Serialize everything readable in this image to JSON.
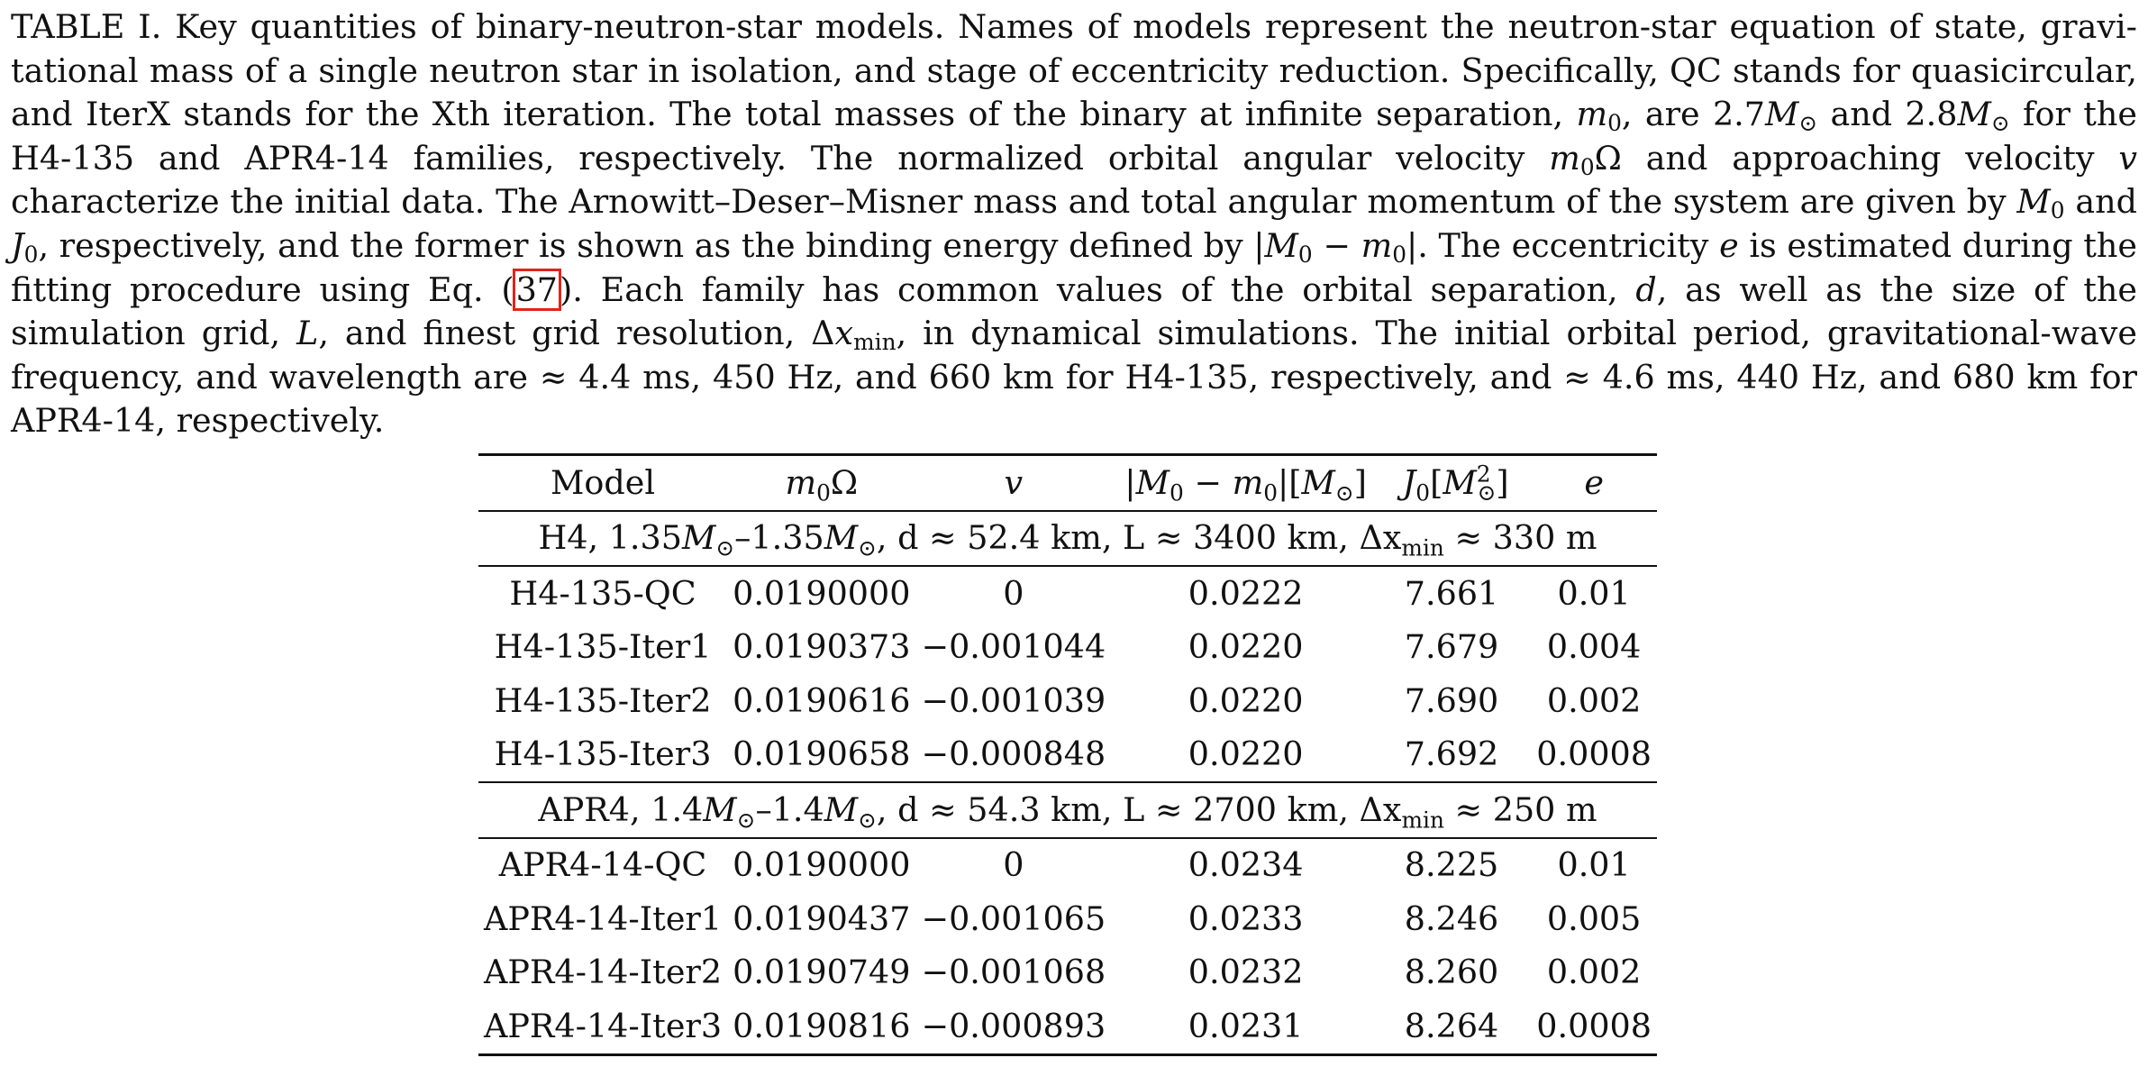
{
  "caption": {
    "label": "TABLE I.",
    "p1": " Key quantities of binary-neutron-star models. Names of models represent the neutron-star equation of state, gravi-tational mass of a single neutron star in isolation, and stage of eccentricity reduction. Specifically, QC stands for quasicircular, and IterX stands for the Xth iteration.  The total masses of the binary at infinite separation, ",
    "p2": ", are 2.7",
    "p3": " and 2.8",
    "p4": " for the H4-135 and APR4-14 families, respectively. The normalized orbital angular velocity ",
    "p5": " and approaching velocity ",
    "p6": " characterize the initial data.  The Arnowitt–Deser–Misner mass and total angular momentum of the system are given by ",
    "p7": " and ",
    "p8": ", respectively, and the former is shown as the binding energy defined by |",
    "p9": "|. The eccentricity ",
    "p10": " is estimated during the fitting procedure using Eq. (",
    "eq_ref": "37",
    "p11": ").  Each family has common values of the orbital separation, ",
    "p12": ", as well as the size of the simulation grid, ",
    "p13": ", and finest grid resolution, Δ",
    "p14": ", in dynamical simulations.  The initial orbital period, gravitational-wave frequency, and wavelength are ≈ 4.4 ms, 450 Hz, and 660 km for H4-135, respectively, and ≈ 4.6 ms, 440 Hz, and 680 km for APR4-14, respectively."
  },
  "table": {
    "headers": {
      "model": "Model",
      "v": "v",
      "e": "e"
    },
    "groups": [
      {
        "label_pre": "H4, 1.35",
        "label_mid": "–1.35",
        "label_d": ", d ≈ 52.4 km, L ≈ 3400 km, Δx",
        "label_post": " ≈ 330 m",
        "rows": [
          {
            "model": "H4-135-QC",
            "m0_omega": "0.0190000",
            "v": "0",
            "binding": "0.0222",
            "J0": "7.661",
            "e": "0.01"
          },
          {
            "model": "H4-135-Iter1",
            "m0_omega": "0.0190373",
            "v": "−0.001044",
            "binding": "0.0220",
            "J0": "7.679",
            "e": "0.004"
          },
          {
            "model": "H4-135-Iter2",
            "m0_omega": "0.0190616",
            "v": "−0.001039",
            "binding": "0.0220",
            "J0": "7.690",
            "e": "0.002"
          },
          {
            "model": "H4-135-Iter3",
            "m0_omega": "0.0190658",
            "v": "−0.000848",
            "binding": "0.0220",
            "J0": "7.692",
            "e": "0.0008"
          }
        ]
      },
      {
        "label_pre": "APR4, 1.4",
        "label_mid": "–1.4",
        "label_d": ", d ≈ 54.3 km, L ≈ 2700 km, Δx",
        "label_post": " ≈ 250 m",
        "rows": [
          {
            "model": "APR4-14-QC",
            "m0_omega": "0.0190000",
            "v": "0",
            "binding": "0.0234",
            "J0": "8.225",
            "e": "0.01"
          },
          {
            "model": "APR4-14-Iter1",
            "m0_omega": "0.0190437",
            "v": "−0.001065",
            "binding": "0.0233",
            "J0": "8.246",
            "e": "0.005"
          },
          {
            "model": "APR4-14-Iter2",
            "m0_omega": "0.0190749",
            "v": "−0.001068",
            "binding": "0.0232",
            "J0": "8.260",
            "e": "0.002"
          },
          {
            "model": "APR4-14-Iter3",
            "m0_omega": "0.0190816",
            "v": "−0.000893",
            "binding": "0.0231",
            "J0": "8.264",
            "e": "0.0008"
          }
        ]
      }
    ]
  }
}
